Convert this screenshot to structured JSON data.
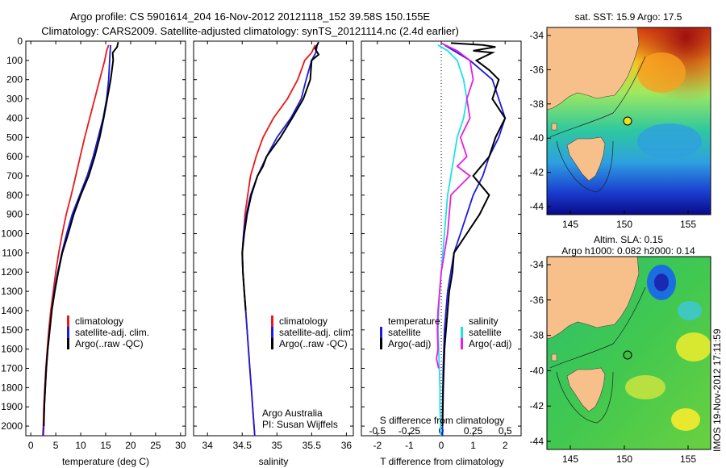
{
  "header": {
    "line1": "Argo profile: CS 5901614_204 16-Nov-2012 20121118_152 39.58S 150.155E",
    "line2": "Climatology: CARS2009. Satellite-adjusted climatology: synTS_20121114.nc (2.4d earlier)"
  },
  "side_label": "IMOS 19-Nov-2012 17:11:59",
  "colors": {
    "climatology": "#e8191a",
    "satellite": "#1a1ae0",
    "argo": "#000000",
    "satellite_salinity": "#1ee0e8",
    "argo_salinity": "#e81ee0",
    "land": "#f7c08a"
  },
  "map_top": {
    "title": "sat. SST: 15.9  Argo: 17.5",
    "ylabels": [
      "-34",
      "-36",
      "-38",
      "-40",
      "-42",
      "-44"
    ],
    "xlabels": [
      "145",
      "150",
      "155"
    ]
  },
  "map_bottom": {
    "title1": "Altim. SLA: 0.15",
    "title2": "Argo h1000: 0.082  h2000: 0.14",
    "ylabels": [
      "-34",
      "-36",
      "-38",
      "-40",
      "-42",
      "-44"
    ],
    "xlabels": [
      "145",
      "150",
      "155"
    ]
  },
  "chart_data": [
    {
      "type": "line",
      "xlabel": "temperature (deg C)",
      "ylabel": "",
      "xlim": [
        -1,
        31
      ],
      "ylim": [
        0,
        2050
      ],
      "y_reversed": true,
      "xticks": [
        0,
        5,
        10,
        15,
        20,
        25,
        30
      ],
      "yticks": [
        0,
        100,
        200,
        300,
        400,
        500,
        600,
        700,
        800,
        900,
        1000,
        1100,
        1200,
        1300,
        1400,
        1500,
        1600,
        1700,
        1800,
        1900,
        2000
      ],
      "legend": [
        "climatology",
        "satellite-adj. clim.",
        "Argo(..raw -QC)"
      ],
      "series": [
        {
          "name": "climatology",
          "color": "#e8191a",
          "points": [
            [
              15.6,
              20
            ],
            [
              15.2,
              50
            ],
            [
              14.8,
              100
            ],
            [
              13.8,
              200
            ],
            [
              12.8,
              300
            ],
            [
              11.8,
              400
            ],
            [
              10.8,
              500
            ],
            [
              9.9,
              600
            ],
            [
              9.0,
              700
            ],
            [
              8.1,
              800
            ],
            [
              7.1,
              900
            ],
            [
              6.3,
              1000
            ],
            [
              5.6,
              1100
            ],
            [
              5.0,
              1200
            ],
            [
              4.5,
              1300
            ],
            [
              4.0,
              1400
            ],
            [
              3.6,
              1500
            ],
            [
              3.3,
              1600
            ],
            [
              3.0,
              1700
            ],
            [
              2.8,
              1800
            ],
            [
              2.6,
              1900
            ],
            [
              2.5,
              2000
            ],
            [
              2.4,
              2050
            ]
          ]
        },
        {
          "name": "satellite-adj. clim.",
          "color": "#1a1ae0",
          "points": [
            [
              16.0,
              20
            ],
            [
              15.9,
              50
            ],
            [
              15.8,
              100
            ],
            [
              15.6,
              200
            ],
            [
              15.2,
              300
            ],
            [
              14.5,
              400
            ],
            [
              13.5,
              500
            ],
            [
              12.5,
              600
            ],
            [
              11.3,
              700
            ],
            [
              9.8,
              800
            ],
            [
              8.3,
              900
            ],
            [
              7.2,
              1000
            ],
            [
              6.2,
              1100
            ],
            [
              5.4,
              1200
            ],
            [
              4.7,
              1300
            ],
            [
              4.2,
              1400
            ],
            [
              3.8,
              1500
            ],
            [
              3.4,
              1600
            ],
            [
              3.1,
              1700
            ],
            [
              2.9,
              1800
            ],
            [
              2.7,
              1900
            ],
            [
              2.6,
              2000
            ],
            [
              2.5,
              2050
            ]
          ]
        },
        {
          "name": "Argo(..raw -QC)",
          "color": "#000000",
          "points": [
            [
              17.5,
              5
            ],
            [
              17.3,
              30
            ],
            [
              16.4,
              60
            ],
            [
              16.5,
              100
            ],
            [
              16.0,
              200
            ],
            [
              15.3,
              300
            ],
            [
              14.6,
              400
            ],
            [
              13.8,
              500
            ],
            [
              12.8,
              600
            ],
            [
              11.6,
              700
            ],
            [
              10.0,
              800
            ],
            [
              8.6,
              900
            ],
            [
              7.5,
              1000
            ],
            [
              6.3,
              1100
            ],
            [
              5.5,
              1200
            ],
            [
              4.8,
              1300
            ],
            [
              4.2,
              1400
            ],
            [
              3.8,
              1500
            ],
            [
              3.4,
              1600
            ],
            [
              3.1,
              1700
            ],
            [
              2.9,
              1800
            ],
            [
              2.7,
              1900
            ],
            [
              2.6,
              2000
            ]
          ]
        }
      ]
    },
    {
      "type": "line",
      "xlabel": "salinity",
      "ylabel": "",
      "xlim": [
        33.8,
        36.1
      ],
      "ylim": [
        0,
        2050
      ],
      "y_reversed": true,
      "xticks": [
        34,
        34.5,
        35,
        35.5,
        36
      ],
      "legend": [
        "climatology",
        "satellite-adj. clim.",
        "Argo(..raw -QC)"
      ],
      "annotations": [
        "Argo Australia",
        "PI: Susan Wijffels"
      ],
      "series": [
        {
          "name": "climatology",
          "color": "#e8191a",
          "points": [
            [
              35.55,
              20
            ],
            [
              35.5,
              60
            ],
            [
              35.4,
              100
            ],
            [
              35.3,
              200
            ],
            [
              35.15,
              300
            ],
            [
              34.95,
              400
            ],
            [
              34.8,
              500
            ],
            [
              34.7,
              600
            ],
            [
              34.62,
              700
            ],
            [
              34.58,
              800
            ],
            [
              34.54,
              900
            ],
            [
              34.52,
              1000
            ],
            [
              34.5,
              1100
            ],
            [
              34.51,
              1200
            ],
            [
              34.53,
              1300
            ],
            [
              34.55,
              1400
            ],
            [
              34.57,
              1500
            ],
            [
              34.59,
              1600
            ],
            [
              34.61,
              1700
            ],
            [
              34.63,
              1800
            ],
            [
              34.65,
              1900
            ],
            [
              34.67,
              2000
            ],
            [
              34.68,
              2050
            ]
          ]
        },
        {
          "name": "satellite-adj. clim.",
          "color": "#1a1ae0",
          "points": [
            [
              35.58,
              20
            ],
            [
              35.56,
              60
            ],
            [
              35.5,
              100
            ],
            [
              35.42,
              200
            ],
            [
              35.35,
              300
            ],
            [
              35.2,
              400
            ],
            [
              35.0,
              500
            ],
            [
              34.85,
              600
            ],
            [
              34.72,
              700
            ],
            [
              34.62,
              800
            ],
            [
              34.56,
              900
            ],
            [
              34.52,
              1000
            ],
            [
              34.5,
              1100
            ],
            [
              34.51,
              1200
            ],
            [
              34.53,
              1300
            ],
            [
              34.55,
              1400
            ],
            [
              34.57,
              1500
            ],
            [
              34.59,
              1600
            ],
            [
              34.61,
              1700
            ],
            [
              34.63,
              1800
            ],
            [
              34.65,
              1900
            ],
            [
              34.67,
              2000
            ],
            [
              34.68,
              2050
            ]
          ]
        },
        {
          "name": "Argo(..raw -QC)",
          "color": "#000000",
          "points": [
            [
              35.6,
              5
            ],
            [
              35.55,
              40
            ],
            [
              35.6,
              70
            ],
            [
              35.5,
              100
            ],
            [
              35.48,
              200
            ],
            [
              35.38,
              300
            ],
            [
              35.22,
              400
            ],
            [
              35.05,
              500
            ],
            [
              34.85,
              600
            ],
            [
              34.8,
              650
            ],
            [
              34.72,
              700
            ],
            [
              34.63,
              800
            ],
            [
              34.57,
              900
            ],
            [
              34.53,
              1000
            ],
            [
              34.5,
              1100
            ],
            [
              34.51,
              1200
            ],
            [
              34.53,
              1300
            ],
            [
              34.55,
              1400
            ]
          ]
        }
      ]
    },
    {
      "type": "line",
      "xlabel": "T difference from climatology",
      "xlabel_top": "S difference from climatology",
      "ylabel": "",
      "xlim": [
        -2.5,
        2.5
      ],
      "ylim": [
        0,
        2050
      ],
      "y_reversed": true,
      "xticks": [
        -2,
        -1,
        0,
        1,
        2
      ],
      "xticks_top": [
        "-0.5",
        "-0.25",
        "0",
        "0.25",
        "0.5"
      ],
      "legend_temperature": {
        "title": "temperature",
        "items": [
          "satellite",
          "Argo(-adj)"
        ]
      },
      "legend_salinity": {
        "title": "salinity",
        "items": [
          "satellite",
          "Argo(-adj)"
        ]
      },
      "series": [
        {
          "name": "satellite",
          "color": "#1a1ae0",
          "points": [
            [
              0.1,
              20
            ],
            [
              0.5,
              60
            ],
            [
              0.9,
              100
            ],
            [
              1.6,
              200
            ],
            [
              1.8,
              300
            ],
            [
              2.0,
              400
            ],
            [
              1.8,
              500
            ],
            [
              1.5,
              600
            ],
            [
              1.3,
              700
            ],
            [
              1.0,
              800
            ],
            [
              0.8,
              900
            ],
            [
              0.6,
              1000
            ],
            [
              0.4,
              1100
            ],
            [
              0.3,
              1200
            ],
            [
              0.2,
              1300
            ],
            [
              0.15,
              1400
            ],
            [
              0.1,
              1500
            ],
            [
              0.08,
              1600
            ],
            [
              0.06,
              1700
            ],
            [
              0.05,
              1800
            ],
            [
              0.04,
              1900
            ],
            [
              0.04,
              2000
            ],
            [
              0.04,
              2050
            ]
          ]
        },
        {
          "name": "Argo(-adj)",
          "color": "#000000",
          "points": [
            [
              0.3,
              10
            ],
            [
              1.3,
              20
            ],
            [
              1.7,
              30
            ],
            [
              1.0,
              50
            ],
            [
              1.6,
              60
            ],
            [
              1.1,
              100
            ],
            [
              1.5,
              150
            ],
            [
              1.8,
              200
            ],
            [
              1.6,
              300
            ],
            [
              2.0,
              400
            ],
            [
              1.7,
              500
            ],
            [
              1.5,
              600
            ],
            [
              1.0,
              700
            ],
            [
              1.5,
              800
            ],
            [
              1.2,
              900
            ],
            [
              1.0,
              950
            ],
            [
              0.8,
              1000
            ],
            [
              0.4,
              1100
            ],
            [
              0.35,
              1200
            ],
            [
              0.25,
              1300
            ],
            [
              0.2,
              1400
            ],
            [
              0.15,
              1500
            ],
            [
              0.1,
              1600
            ],
            [
              0.08,
              1700
            ],
            [
              0.06,
              1800
            ],
            [
              0.05,
              1900
            ],
            [
              0.04,
              2000
            ]
          ]
        },
        {
          "name": "satellite",
          "color": "#1ee0e8",
          "points": [
            [
              -0.1,
              20
            ],
            [
              0.2,
              50
            ],
            [
              0.5,
              100
            ],
            [
              0.7,
              200
            ],
            [
              0.8,
              300
            ],
            [
              0.7,
              400
            ],
            [
              0.5,
              500
            ],
            [
              0.4,
              600
            ],
            [
              0.3,
              700
            ],
            [
              0.2,
              800
            ],
            [
              0.15,
              900
            ],
            [
              0.1,
              1000
            ],
            [
              0.05,
              1100
            ],
            [
              0.0,
              1200
            ],
            [
              -0.05,
              1300
            ],
            [
              -0.08,
              1400
            ],
            [
              -0.1,
              1500
            ],
            [
              -0.08,
              1600
            ],
            [
              -0.06,
              1700
            ],
            [
              -0.04,
              1800
            ],
            [
              -0.04,
              1900
            ],
            [
              -0.02,
              2000
            ],
            [
              -0.02,
              2050
            ]
          ]
        },
        {
          "name": "Argo(-adj)",
          "color": "#e81ee0",
          "points": [
            [
              0.0,
              10
            ],
            [
              0.5,
              50
            ],
            [
              0.9,
              100
            ],
            [
              1.0,
              200
            ],
            [
              0.8,
              300
            ],
            [
              0.9,
              400
            ],
            [
              0.6,
              500
            ],
            [
              0.8,
              600
            ],
            [
              0.5,
              650
            ],
            [
              0.9,
              700
            ],
            [
              0.3,
              800
            ],
            [
              0.25,
              900
            ],
            [
              0.2,
              1000
            ],
            [
              0.1,
              1100
            ],
            [
              0.0,
              1200
            ],
            [
              -0.05,
              1300
            ],
            [
              -0.1,
              1400
            ],
            [
              -0.12,
              1500
            ],
            [
              -0.1,
              1600
            ],
            [
              -0.15,
              1650
            ],
            [
              -0.08,
              1700
            ]
          ]
        }
      ]
    }
  ]
}
